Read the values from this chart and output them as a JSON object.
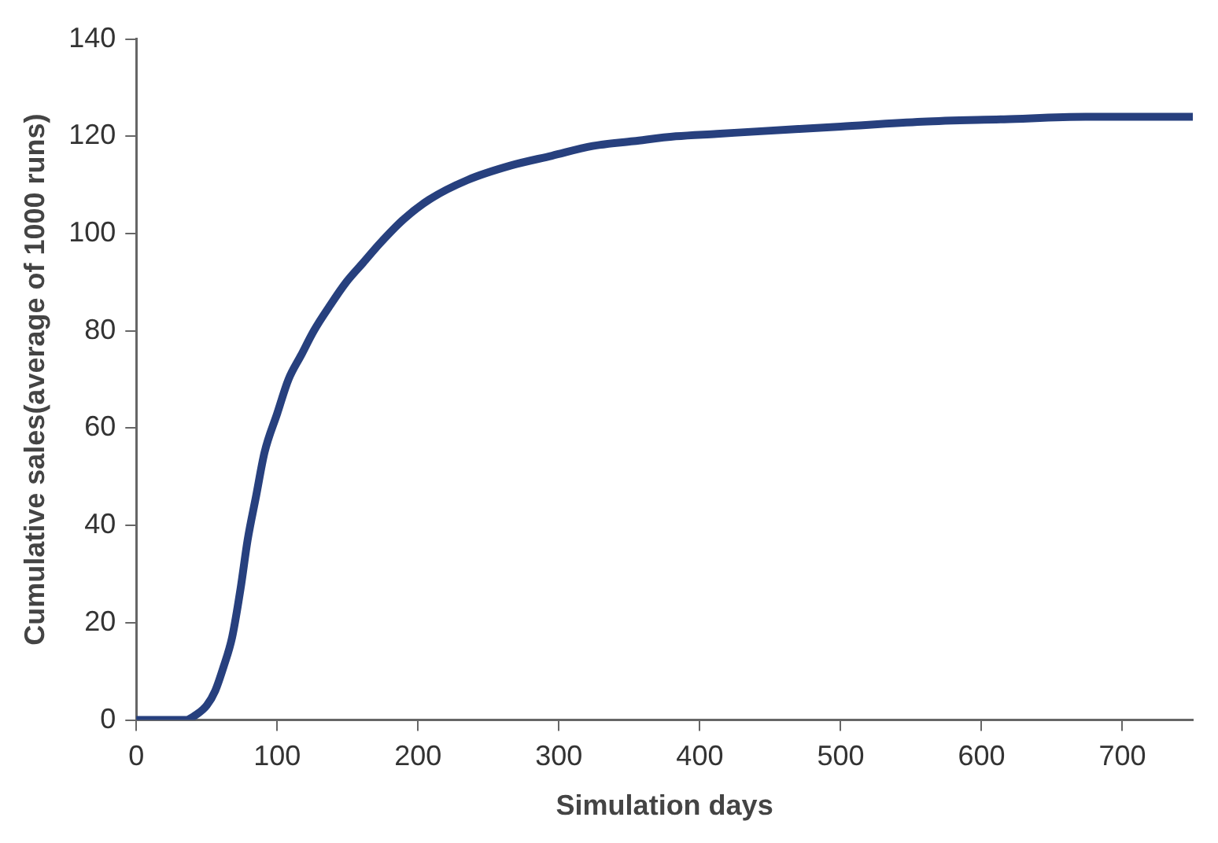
{
  "chart_data": {
    "type": "line",
    "xlabel": "Simulation days",
    "ylabel": "Cumulative sales(average of 1000 runs)",
    "series": [
      {
        "color": "#27407e",
        "x": [
          0,
          20,
          35,
          42,
          50,
          56,
          62,
          68,
          74,
          79,
          85,
          91,
          100,
          108,
          117,
          126,
          137,
          149,
          161,
          173,
          190,
          208,
          235,
          266,
          295,
          324,
          353,
          383,
          412,
          441,
          500,
          558,
          616,
          674,
          750
        ],
        "values": [
          0,
          0,
          0,
          1,
          3,
          6,
          11,
          17,
          27,
          37,
          46,
          55,
          63,
          70,
          75,
          80,
          85,
          90,
          94,
          98,
          103,
          107,
          111,
          114,
          116,
          118,
          119,
          120,
          120.5,
          121,
          122,
          123,
          123.5,
          124,
          124
        ]
      }
    ],
    "xlim": [
      0,
      750
    ],
    "ylim": [
      0,
      140
    ],
    "xticks": [
      0,
      100,
      200,
      300,
      400,
      500,
      600,
      700
    ],
    "yticks": [
      0,
      20,
      40,
      60,
      80,
      100,
      120,
      140
    ],
    "grid": false,
    "legend": false,
    "marker": "none",
    "line_style": "solid"
  }
}
